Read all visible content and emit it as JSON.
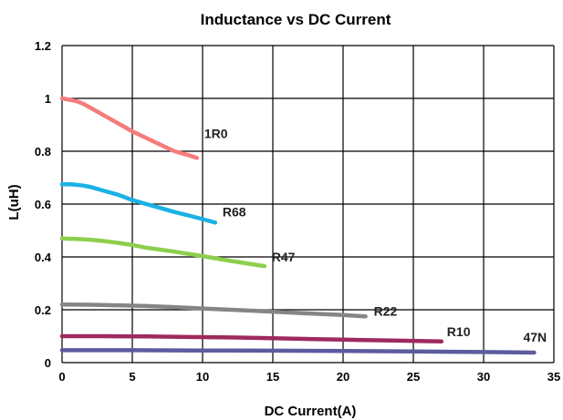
{
  "chart_data": {
    "type": "line",
    "title": "Inductance vs DC Current",
    "xlabel": "DC Current(A)",
    "ylabel": "L(uH)",
    "xlim": [
      0,
      35
    ],
    "ylim": [
      0,
      1.2
    ],
    "xticks": [
      0,
      5,
      10,
      15,
      20,
      25,
      30,
      35
    ],
    "yticks": [
      0,
      0.2,
      0.4,
      0.6,
      0.8,
      1,
      1.2
    ],
    "xtick_labels": [
      "0",
      "5",
      "10",
      "15",
      "20",
      "25",
      "30",
      "35"
    ],
    "ytick_labels": [
      "0",
      "0.2",
      "0.4",
      "0.6",
      "0.8",
      "1",
      "1.2"
    ],
    "grid": true,
    "legend": "none",
    "series": [
      {
        "name": "1R0",
        "color": "#f47c7c",
        "x": [
          0,
          0.5,
          1,
          1.5,
          2,
          3,
          4,
          5,
          6,
          7,
          8,
          9,
          9.6
        ],
        "y": [
          1.0,
          0.995,
          0.99,
          0.98,
          0.965,
          0.935,
          0.905,
          0.875,
          0.85,
          0.825,
          0.8,
          0.785,
          0.775
        ]
      },
      {
        "name": "R68",
        "color": "#1ab2e6",
        "x": [
          0,
          0.5,
          1,
          1.5,
          2,
          3,
          4,
          5,
          6,
          7,
          8,
          9,
          10,
          10.9
        ],
        "y": [
          0.675,
          0.675,
          0.673,
          0.67,
          0.665,
          0.65,
          0.635,
          0.615,
          0.6,
          0.585,
          0.57,
          0.557,
          0.543,
          0.53
        ]
      },
      {
        "name": "R47",
        "color": "#8dcf4c",
        "x": [
          0,
          1,
          2,
          3,
          4,
          5,
          6,
          8,
          10,
          12,
          14.4
        ],
        "y": [
          0.47,
          0.468,
          0.465,
          0.46,
          0.453,
          0.445,
          0.435,
          0.42,
          0.403,
          0.385,
          0.365
        ]
      },
      {
        "name": "R22",
        "color": "#858585",
        "x": [
          0,
          2,
          4,
          6,
          8,
          10,
          12,
          14,
          16,
          18,
          20,
          21.6
        ],
        "y": [
          0.22,
          0.219,
          0.217,
          0.214,
          0.21,
          0.205,
          0.2,
          0.195,
          0.19,
          0.185,
          0.18,
          0.175
        ]
      },
      {
        "name": "R10",
        "color": "#9e2a5e",
        "x": [
          0,
          3,
          6,
          9,
          12,
          15,
          18,
          21,
          24,
          27
        ],
        "y": [
          0.1,
          0.1,
          0.099,
          0.097,
          0.095,
          0.092,
          0.089,
          0.086,
          0.083,
          0.08
        ]
      },
      {
        "name": "47N",
        "color": "#5d5b9e",
        "x": [
          0,
          5,
          10,
          15,
          20,
          25,
          30,
          33.6
        ],
        "y": [
          0.047,
          0.047,
          0.046,
          0.045,
          0.044,
          0.042,
          0.04,
          0.038
        ]
      }
    ]
  }
}
